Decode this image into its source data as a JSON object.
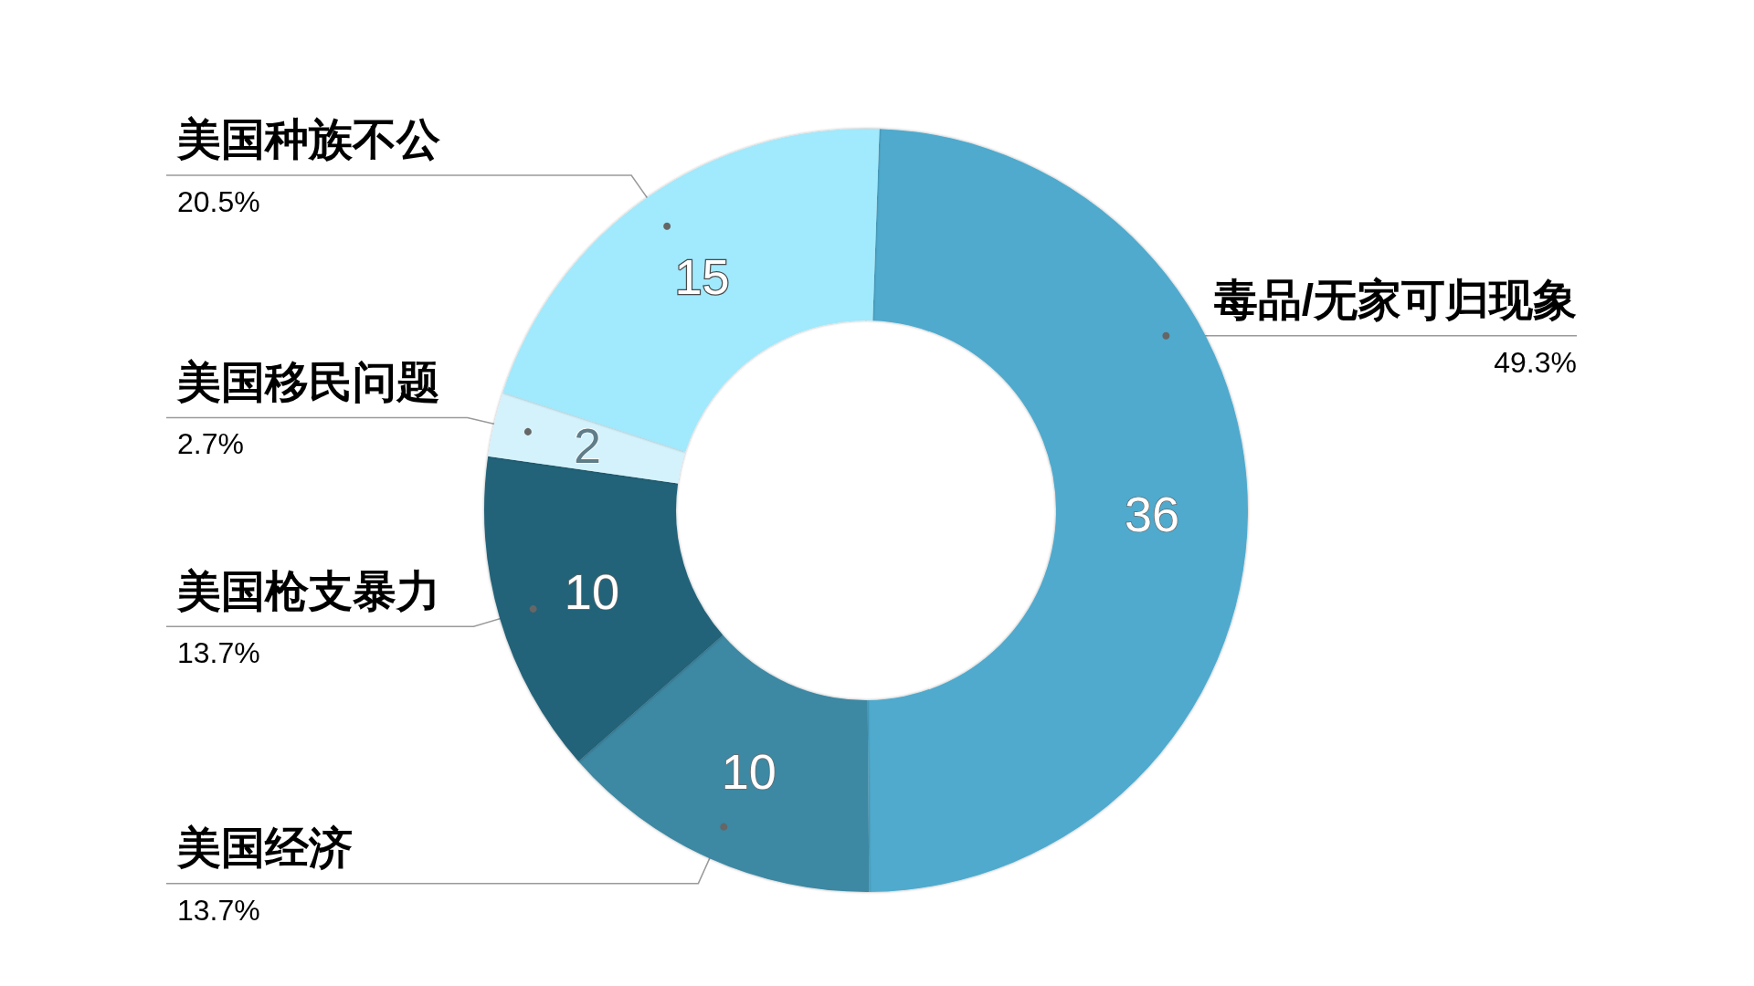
{
  "chart_data": {
    "type": "donut",
    "categories": [
      "毒品/无家可归现象",
      "美国经济",
      "美国枪支暴力",
      "美国移民问题",
      "美国种族不公"
    ],
    "values": [
      36,
      10,
      10,
      2,
      15
    ],
    "colors": [
      "#4faacd",
      "#3d88a3",
      "#236379",
      "#d4f2fc",
      "#a1e9fc"
    ],
    "data_labels": true,
    "annotations": [
      "49.3%",
      "13.7%",
      "13.7%",
      "2.7%",
      "20.5%"
    ]
  }
}
